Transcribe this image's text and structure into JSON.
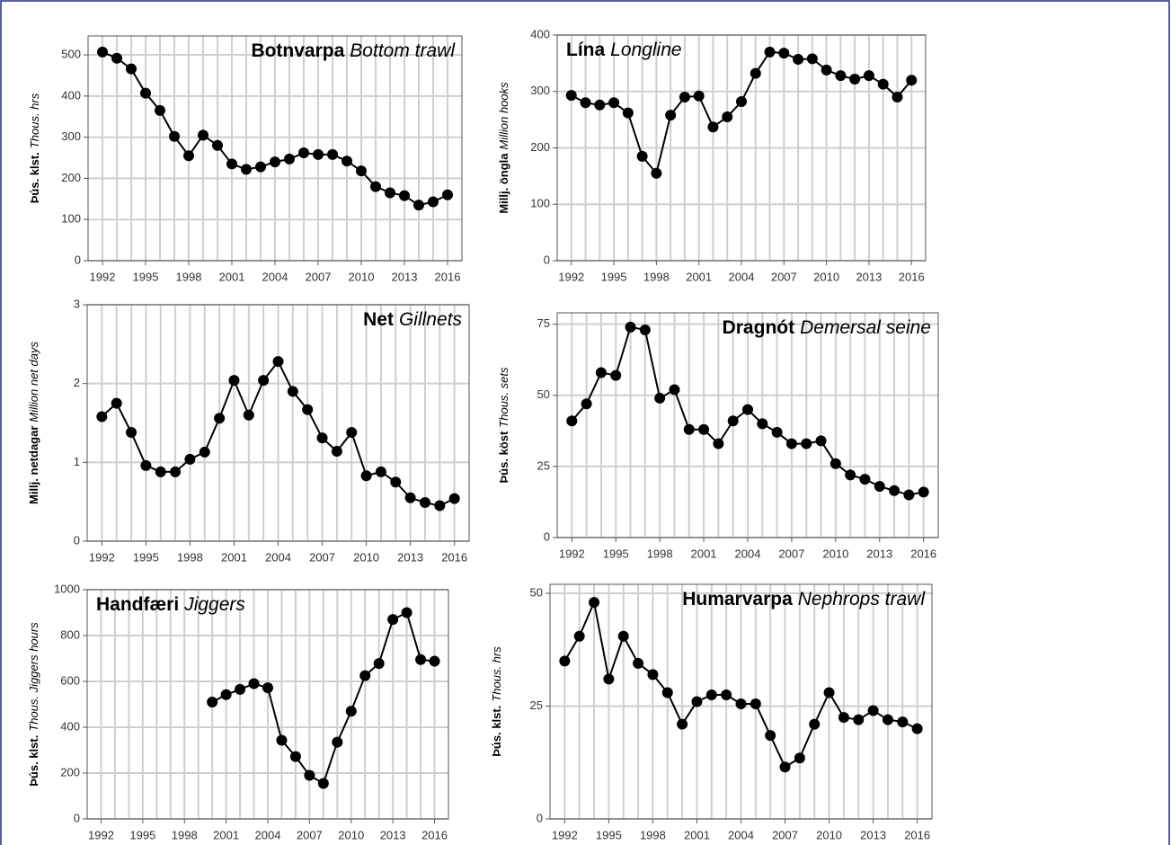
{
  "chart_data": [
    {
      "type": "line",
      "title": "Botnvarpa",
      "title_en": "Bottom trawl",
      "title_position": "top-right",
      "ylabel": "Þús. klst.",
      "ylabel_en": "Thous. hrs",
      "color": "#000000",
      "grid": true,
      "x": [
        1992,
        1993,
        1994,
        1995,
        1996,
        1997,
        1998,
        1999,
        2000,
        2001,
        2002,
        2003,
        2004,
        2005,
        2006,
        2007,
        2008,
        2009,
        2010,
        2011,
        2012,
        2013,
        2014,
        2015,
        2016
      ],
      "values": [
        507,
        492,
        466,
        407,
        365,
        302,
        255,
        305,
        280,
        235,
        222,
        228,
        240,
        247,
        262,
        258,
        258,
        242,
        218,
        180,
        165,
        158,
        135,
        143,
        160
      ],
      "xlim": [
        1991,
        2017
      ],
      "ylim": [
        0,
        546
      ],
      "xticks": [
        1992,
        1995,
        1998,
        2001,
        2004,
        2007,
        2010,
        2013,
        2016
      ],
      "yticks": [
        0,
        100,
        200,
        300,
        400,
        500
      ]
    },
    {
      "type": "line",
      "title": "Lína",
      "title_en": "Longline",
      "title_position": "top-left",
      "ylabel": "Millj. öngla",
      "ylabel_en": "Million hooks",
      "color": "#000000",
      "grid": true,
      "x": [
        1992,
        1993,
        1994,
        1995,
        1996,
        1997,
        1998,
        1999,
        2000,
        2001,
        2002,
        2003,
        2004,
        2005,
        2006,
        2007,
        2008,
        2009,
        2010,
        2011,
        2012,
        2013,
        2014,
        2015,
        2016
      ],
      "values": [
        293,
        280,
        276,
        280,
        262,
        185,
        155,
        258,
        290,
        292,
        237,
        255,
        282,
        332,
        370,
        368,
        357,
        358,
        338,
        328,
        322,
        328,
        313,
        290,
        320
      ],
      "xlim": [
        1991,
        2017
      ],
      "ylim": [
        0,
        400
      ],
      "xticks": [
        1992,
        1995,
        1998,
        2001,
        2004,
        2007,
        2010,
        2013,
        2016
      ],
      "yticks": [
        0,
        100,
        200,
        300,
        400
      ]
    },
    {
      "type": "line",
      "title": "Net",
      "title_en": "Gillnets",
      "title_position": "top-right",
      "ylabel": "Millj. netdagar",
      "ylabel_en": "Million net days",
      "color": "#000000",
      "grid": true,
      "x": [
        1992,
        1993,
        1994,
        1995,
        1996,
        1997,
        1998,
        1999,
        2000,
        2001,
        2002,
        2003,
        2004,
        2005,
        2006,
        2007,
        2008,
        2009,
        2010,
        2011,
        2012,
        2013,
        2014,
        2015,
        2016
      ],
      "values": [
        1.58,
        1.75,
        1.38,
        0.96,
        0.88,
        0.88,
        1.04,
        1.13,
        1.56,
        2.04,
        1.6,
        2.04,
        2.28,
        1.9,
        1.67,
        1.31,
        1.14,
        1.38,
        0.83,
        0.88,
        0.75,
        0.55,
        0.49,
        0.45,
        0.54
      ],
      "xlim": [
        1991,
        2017
      ],
      "ylim": [
        0,
        3
      ],
      "xticks": [
        1992,
        1995,
        1998,
        2001,
        2004,
        2007,
        2010,
        2013,
        2016
      ],
      "yticks": [
        0,
        1,
        2,
        3
      ]
    },
    {
      "type": "line",
      "title": "Dragnót",
      "title_en": "Demersal seine",
      "title_position": "top-right",
      "ylabel": "Þús. köst",
      "ylabel_en": "Thous. sets",
      "color": "#000000",
      "grid": true,
      "x": [
        1992,
        1993,
        1994,
        1995,
        1996,
        1997,
        1998,
        1999,
        2000,
        2001,
        2002,
        2003,
        2004,
        2005,
        2006,
        2007,
        2008,
        2009,
        2010,
        2011,
        2012,
        2013,
        2014,
        2015,
        2016
      ],
      "values": [
        41,
        47,
        58,
        57,
        74,
        73,
        49,
        52,
        38,
        38,
        33,
        41,
        45,
        40,
        37,
        33,
        33,
        34,
        26,
        22,
        20.5,
        18,
        16.5,
        15,
        16
      ],
      "xlim": [
        1991,
        2017
      ],
      "ylim": [
        0,
        79
      ],
      "xticks": [
        1992,
        1995,
        1998,
        2001,
        2004,
        2007,
        2010,
        2013,
        2016
      ],
      "yticks": [
        0,
        25,
        50,
        75
      ]
    },
    {
      "type": "line",
      "title": "Handfæri",
      "title_en": "Jiggers",
      "title_position": "top-left",
      "ylabel": "Þús. klst.",
      "ylabel_en": "Thous. Jiggers hours",
      "color": "#000000",
      "grid": true,
      "x": [
        1992,
        1993,
        1994,
        1995,
        1996,
        1997,
        1998,
        1999,
        2000,
        2001,
        2002,
        2003,
        2004,
        2005,
        2006,
        2007,
        2008,
        2009,
        2010,
        2011,
        2012,
        2013,
        2014,
        2015,
        2016
      ],
      "values": [
        null,
        null,
        null,
        null,
        null,
        null,
        null,
        null,
        510,
        542,
        565,
        590,
        572,
        343,
        272,
        190,
        155,
        335,
        470,
        625,
        678,
        870,
        900,
        695,
        688
      ],
      "xlim": [
        1991,
        2017
      ],
      "ylim": [
        0,
        1000
      ],
      "xticks": [
        1992,
        1995,
        1998,
        2001,
        2004,
        2007,
        2010,
        2013,
        2016
      ],
      "yticks": [
        0,
        200,
        400,
        600,
        800,
        1000
      ]
    },
    {
      "type": "line",
      "title": "Humarvarpa",
      "title_en": "Nephrops trawl",
      "title_position": "top-right",
      "ylabel": "Þús. klst.",
      "ylabel_en": "Thous. hrs",
      "color": "#000000",
      "grid": true,
      "x": [
        1992,
        1993,
        1994,
        1995,
        1996,
        1997,
        1998,
        1999,
        2000,
        2001,
        2002,
        2003,
        2004,
        2005,
        2006,
        2007,
        2008,
        2009,
        2010,
        2011,
        2012,
        2013,
        2014,
        2015,
        2016
      ],
      "values": [
        35,
        40.5,
        48,
        31,
        40.5,
        34.5,
        32,
        28,
        21,
        26,
        27.5,
        27.5,
        25.5,
        25.5,
        18.5,
        11.5,
        13.5,
        21,
        28,
        22.5,
        22,
        24,
        22,
        21.5,
        20
      ],
      "xlim": [
        1991,
        2017
      ],
      "ylim": [
        0,
        52
      ],
      "xticks": [
        1992,
        1995,
        1998,
        2001,
        2004,
        2007,
        2010,
        2013,
        2016
      ],
      "yticks": [
        0,
        25,
        50
      ]
    }
  ]
}
